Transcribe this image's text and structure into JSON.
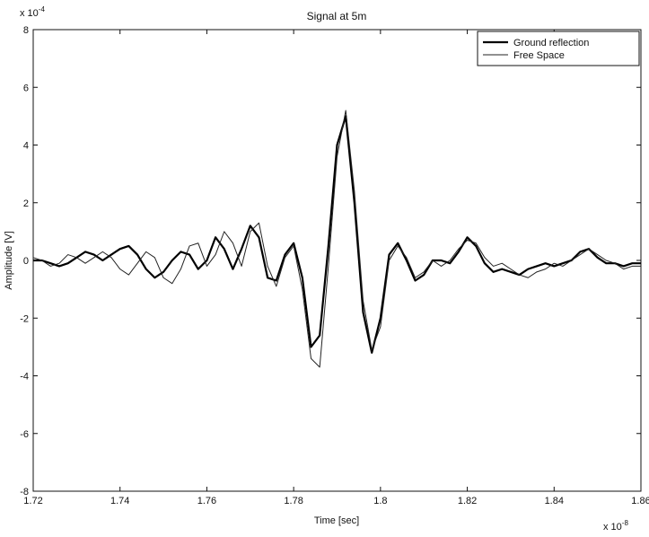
{
  "chart_data": {
    "type": "line",
    "title": "Signal at 5m",
    "xlabel": "Time [sec]",
    "ylabel": "Amplitude [V]",
    "x_scale_label": {
      "base": "x 10",
      "exponent": "-8"
    },
    "y_scale_label": {
      "base": "x 10",
      "exponent": "-4"
    },
    "xlim": [
      1.72,
      1.86
    ],
    "ylim": [
      -8,
      8
    ],
    "xticks": [
      1.72,
      1.74,
      1.76,
      1.78,
      1.8,
      1.82,
      1.84,
      1.86
    ],
    "yticks": [
      -8,
      -6,
      -4,
      -2,
      0,
      2,
      4,
      6,
      8
    ],
    "grid": false,
    "legend": "upper right",
    "x": [
      1.72,
      1.722,
      1.724,
      1.726,
      1.728,
      1.73,
      1.732,
      1.734,
      1.736,
      1.738,
      1.74,
      1.742,
      1.744,
      1.746,
      1.748,
      1.75,
      1.752,
      1.754,
      1.756,
      1.758,
      1.76,
      1.762,
      1.764,
      1.766,
      1.768,
      1.77,
      1.772,
      1.774,
      1.776,
      1.778,
      1.78,
      1.782,
      1.784,
      1.786,
      1.788,
      1.79,
      1.792,
      1.794,
      1.796,
      1.798,
      1.8,
      1.802,
      1.804,
      1.806,
      1.808,
      1.81,
      1.812,
      1.814,
      1.816,
      1.818,
      1.82,
      1.822,
      1.824,
      1.826,
      1.828,
      1.83,
      1.832,
      1.834,
      1.836,
      1.838,
      1.84,
      1.842,
      1.844,
      1.846,
      1.848,
      1.85,
      1.852,
      1.854,
      1.856,
      1.858,
      1.86
    ],
    "series": [
      {
        "name": "Ground reflection",
        "color": "#000000",
        "width": 2.2,
        "values": [
          0,
          0,
          -0.1,
          -0.2,
          -0.1,
          0.1,
          0.3,
          0.2,
          0,
          0.2,
          0.4,
          0.5,
          0.2,
          -0.3,
          -0.6,
          -0.4,
          0,
          0.3,
          0.2,
          -0.3,
          0,
          0.8,
          0.4,
          -0.3,
          0.4,
          1.2,
          0.8,
          -0.6,
          -0.7,
          0.2,
          0.6,
          -0.6,
          -3.0,
          -2.6,
          0.5,
          4.0,
          5.0,
          2.0,
          -1.8,
          -3.2,
          -2.0,
          0.2,
          0.6,
          0,
          -0.7,
          -0.5,
          0,
          0,
          -0.1,
          0.3,
          0.8,
          0.5,
          -0.1,
          -0.4,
          -0.3,
          -0.4,
          -0.5,
          -0.3,
          -0.2,
          -0.1,
          -0.2,
          -0.1,
          0,
          0.3,
          0.4,
          0.1,
          -0.1,
          -0.1,
          -0.2,
          -0.1,
          -0.1
        ]
      },
      {
        "name": "Free Space",
        "color": "#222222",
        "width": 1,
        "values": [
          0.1,
          0,
          -0.2,
          -0.1,
          0.2,
          0.1,
          -0.1,
          0.1,
          0.3,
          0.1,
          -0.3,
          -0.5,
          -0.1,
          0.3,
          0.1,
          -0.6,
          -0.8,
          -0.3,
          0.5,
          0.6,
          -0.2,
          0.2,
          1.0,
          0.6,
          -0.2,
          1.0,
          1.3,
          -0.2,
          -0.9,
          0.1,
          0.5,
          -1.0,
          -3.4,
          -3.7,
          -0.2,
          3.6,
          5.2,
          2.4,
          -1.4,
          -3.1,
          -2.3,
          0,
          0.5,
          0.1,
          -0.6,
          -0.4,
          0,
          -0.2,
          0,
          0.4,
          0.7,
          0.6,
          0.1,
          -0.2,
          -0.1,
          -0.3,
          -0.5,
          -0.6,
          -0.4,
          -0.3,
          -0.1,
          -0.2,
          0,
          0.2,
          0.4,
          0.2,
          0,
          -0.1,
          -0.3,
          -0.2,
          -0.2
        ]
      }
    ]
  }
}
